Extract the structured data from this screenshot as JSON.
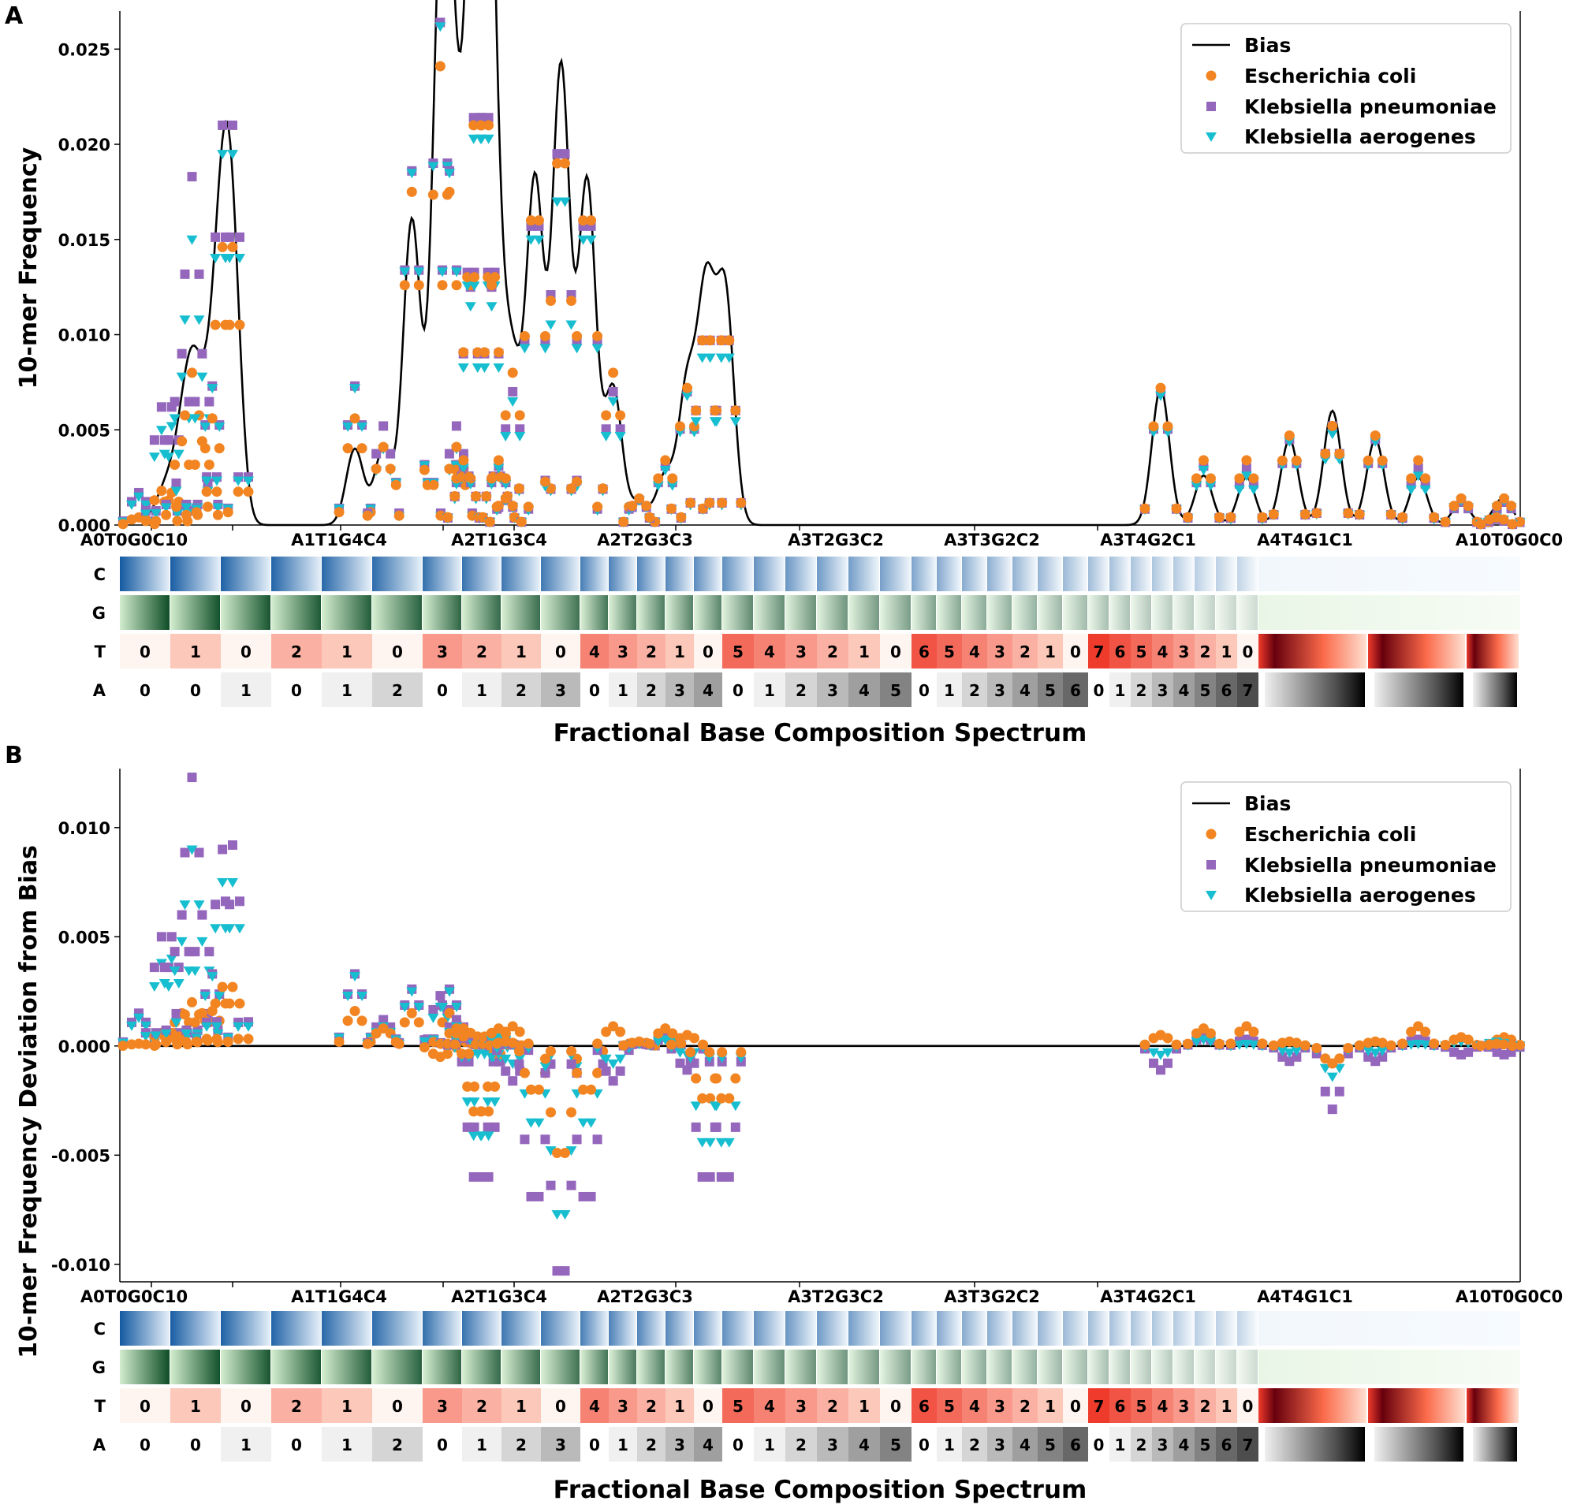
{
  "colors": {
    "bias": "#000000",
    "ecoli": "#f28522",
    "kpneu": "#9467bd",
    "kaero": "#17becf",
    "C_dark": "#08519c",
    "C_light": "#deebf7",
    "G_dark": "#00441b",
    "G_light": "#c7e9c0",
    "T_dark": "#67000d",
    "T_mid": "#ef3b2c",
    "T_light": "#fee0d2",
    "A_dark": "#000000",
    "A_light": "#f0f0f0"
  },
  "legend": {
    "bias": "Bias",
    "ecoli": "Escherichia coli",
    "kpneu": "Klebsiella pneumoniae",
    "kaero": "Klebsiella aerogenes"
  },
  "composition": {
    "x_title": "Fractional Base Composition Spectrum",
    "x_tick_labels": [
      "A0T0G0C10",
      "A1T1G4C4",
      "A2T1G3C4",
      "A2T2G3C3",
      "A3T2G3C2",
      "A3T3G2C2",
      "A3T4G2C1",
      "A4T4G1C1",
      "A10T0G0C0"
    ],
    "band_labels": [
      "C",
      "G",
      "T",
      "A"
    ],
    "T_numbers": [
      "0",
      "1",
      "0",
      "2",
      "1",
      "0",
      "3",
      "2",
      "1",
      "0",
      "4",
      "3",
      "2",
      "1",
      "0",
      "5",
      "4",
      "3",
      "2",
      "1",
      "0",
      "6",
      "5",
      "4",
      "3",
      "2",
      "1",
      "0",
      "7",
      "6",
      "5",
      "4",
      "3",
      "2",
      "1",
      "0"
    ],
    "A_numbers": [
      "0",
      "0",
      "1",
      "0",
      "1",
      "2",
      "0",
      "1",
      "2",
      "3",
      "0",
      "1",
      "2",
      "3",
      "4",
      "0",
      "1",
      "2",
      "3",
      "4",
      "5",
      "0",
      "1",
      "2",
      "3",
      "4",
      "5",
      "6",
      "0",
      "1",
      "2",
      "3",
      "4",
      "5",
      "6",
      "7"
    ]
  },
  "chart_data": [
    {
      "type": "line+scatter",
      "panel_label": "A",
      "ylabel": "10-mer Frequency",
      "xlabel": "Fractional Base Composition Spectrum",
      "ylim": [
        0,
        0.027
      ],
      "yticks": [
        "0.000",
        "0.005",
        "0.010",
        "0.015",
        "0.020",
        "0.025"
      ],
      "ytick_values": [
        0,
        0.005,
        0.01,
        0.015,
        0.02,
        0.025
      ],
      "legend_position": "top-right",
      "series": [
        {
          "name": "Bias",
          "style": "line"
        },
        {
          "name": "Escherichia coli",
          "style": "circle"
        },
        {
          "name": "Klebsiella pneumoniae",
          "style": "square"
        },
        {
          "name": "Klebsiella aerogenes",
          "style": "triangle-down"
        }
      ],
      "peaks": [
        {
          "bias": 0.0003,
          "ecoli": 0.0004,
          "kpneu": 0.0017,
          "kaero": 0.0015,
          "n": 3
        },
        {
          "bias": 0.0012,
          "ecoli": 0.0018,
          "kpneu": 0.0062,
          "kaero": 0.005,
          "n": 3
        },
        {
          "bias": 0.0012,
          "ecoli": 0.0017,
          "kpneu": 0.0062,
          "kaero": 0.0052,
          "n": 3
        },
        {
          "bias": 0.003,
          "ecoli": 0.0044,
          "kpneu": 0.009,
          "kaero": 0.0078,
          "n": 3
        },
        {
          "bias": 0.006,
          "ecoli": 0.008,
          "kpneu": 0.0183,
          "kaero": 0.015,
          "n": 3
        },
        {
          "bias": 0.003,
          "ecoli": 0.0044,
          "kpneu": 0.009,
          "kaero": 0.0078,
          "n": 3
        },
        {
          "bias": 0.004,
          "ecoli": 0.0056,
          "kpneu": 0.0073,
          "kaero": 0.0072,
          "n": 3
        },
        {
          "bias": 0.012,
          "ecoli": 0.0146,
          "kpneu": 0.021,
          "kaero": 0.0195,
          "n": 3
        },
        {
          "bias": 0.012,
          "ecoli": 0.0146,
          "kpneu": 0.021,
          "kaero": 0.0195,
          "n": 3
        },
        {
          "bias": 0.004,
          "ecoli": 0.0056,
          "kpneu": 0.0073,
          "kaero": 0.0072,
          "n": 3
        },
        {
          "bias": 0.004,
          "ecoli": 0.0041,
          "kpneu": 0.0052,
          "kaero": 0.004,
          "n": 3
        },
        {
          "bias": 0.016,
          "ecoli": 0.0175,
          "kpneu": 0.0186,
          "kaero": 0.0185,
          "n": 3
        },
        {
          "bias": 0.024,
          "ecoli": 0.0241,
          "kpneu": 0.0264,
          "kaero": 0.0262,
          "n": 3
        },
        {
          "bias": 0.016,
          "ecoli": 0.0175,
          "kpneu": 0.0186,
          "kaero": 0.0185,
          "n": 3
        },
        {
          "bias": 0.004,
          "ecoli": 0.0041,
          "kpneu": 0.0052,
          "kaero": 0.004,
          "n": 3
        },
        {
          "bias": 0.0026,
          "ecoli": 0.0034,
          "kpneu": 0.0031,
          "kaero": 0.003,
          "n": 3
        },
        {
          "bias": 0.012,
          "ecoli": 0.0126,
          "kpneu": 0.0125,
          "kaero": 0.0115,
          "n": 3
        },
        {
          "bias": 0.024,
          "ecoli": 0.021,
          "kpneu": 0.0214,
          "kaero": 0.0203,
          "n": 4
        },
        {
          "bias": 0.024,
          "ecoli": 0.021,
          "kpneu": 0.0214,
          "kaero": 0.0203,
          "n": 4
        },
        {
          "bias": 0.012,
          "ecoli": 0.0126,
          "kpneu": 0.0125,
          "kaero": 0.0115,
          "n": 3
        },
        {
          "bias": 0.0026,
          "ecoli": 0.0034,
          "kpneu": 0.0031,
          "kaero": 0.003,
          "n": 3
        },
        {
          "bias": 0.0012,
          "ecoli": 0.0014,
          "kpneu": 0.0013,
          "kaero": 0.0013,
          "n": 3
        },
        {
          "bias": 0.0072,
          "ecoli": 0.008,
          "kpneu": 0.007,
          "kaero": 0.0065,
          "n": 3
        },
        {
          "bias": 0.018,
          "ecoli": 0.016,
          "kpneu": 0.0157,
          "kaero": 0.015,
          "n": 4
        },
        {
          "bias": 0.024,
          "ecoli": 0.019,
          "kpneu": 0.0195,
          "kaero": 0.017,
          "n": 4
        },
        {
          "bias": 0.018,
          "ecoli": 0.016,
          "kpneu": 0.0157,
          "kaero": 0.015,
          "n": 4
        },
        {
          "bias": 0.0072,
          "ecoli": 0.008,
          "kpneu": 0.007,
          "kaero": 0.0065,
          "n": 3
        },
        {
          "bias": 0.0012,
          "ecoli": 0.0014,
          "kpneu": 0.0013,
          "kaero": 0.0013,
          "n": 3
        },
        {
          "bias": 0.0026,
          "ecoli": 0.0034,
          "kpneu": 0.0031,
          "kaero": 0.0029,
          "n": 3
        },
        {
          "bias": 0.0072,
          "ecoli": 0.0072,
          "kpneu": 0.007,
          "kaero": 0.0068,
          "n": 3
        },
        {
          "bias": 0.012,
          "ecoli": 0.0097,
          "kpneu": 0.0097,
          "kaero": 0.0088,
          "n": 4
        },
        {
          "bias": 0.012,
          "ecoli": 0.0097,
          "kpneu": 0.0097,
          "kaero": 0.0088,
          "n": 4
        },
        {
          "bias": 0.0072,
          "ecoli": 0.0072,
          "kpneu": 0.007,
          "kaero": 0.0068,
          "n": 3
        },
        {
          "bias": 0.0026,
          "ecoli": 0.0034,
          "kpneu": 0.0031,
          "kaero": 0.0029,
          "n": 3
        },
        {
          "bias": 0.0025,
          "ecoli": 0.0034,
          "kpneu": 0.003,
          "kaero": 0.0026,
          "n": 3
        },
        {
          "bias": 0.0045,
          "ecoli": 0.0047,
          "kpneu": 0.0045,
          "kaero": 0.0044,
          "n": 3
        },
        {
          "bias": 0.006,
          "ecoli": 0.0052,
          "kpneu": 0.0052,
          "kaero": 0.0048,
          "n": 3
        },
        {
          "bias": 0.0045,
          "ecoli": 0.0047,
          "kpneu": 0.0045,
          "kaero": 0.0044,
          "n": 3
        },
        {
          "bias": 0.0025,
          "ecoli": 0.0034,
          "kpneu": 0.003,
          "kaero": 0.0026,
          "n": 3
        },
        {
          "bias": 0.0012,
          "ecoli": 0.0014,
          "kpneu": 0.0012,
          "kaero": 0.0013,
          "n": 3
        },
        {
          "bias": 0.0012,
          "ecoli": 0.0014,
          "kpneu": 0.0012,
          "kaero": 0.0013,
          "n": 3
        },
        {
          "bias": 0.0003,
          "ecoli": 0.0004,
          "kpneu": 0.0003,
          "kaero": 0.0004,
          "n": 3
        }
      ]
    },
    {
      "type": "scatter",
      "panel_label": "B",
      "ylabel": "10-mer Frequency Deviation from Bias",
      "xlabel": "Fractional Base Composition Spectrum",
      "ylim": [
        -0.0108,
        0.0127
      ],
      "yticks": [
        "0.010",
        "0.005",
        "0.000",
        "-0.005",
        "-0.010"
      ],
      "ytick_values": [
        0.01,
        0.005,
        0,
        -0.005,
        -0.01
      ],
      "legend_position": "top-right",
      "series": [
        {
          "name": "Bias",
          "style": "horizontal line at 0"
        },
        {
          "name": "Escherichia coli",
          "style": "circle"
        },
        {
          "name": "Klebsiella pneumoniae",
          "style": "square"
        },
        {
          "name": "Klebsiella aerogenes",
          "style": "triangle-down"
        }
      ],
      "peaks": [
        {
          "ecoli": 0.0001,
          "kpneu": 0.0015,
          "kaero": 0.0013,
          "n": 3
        },
        {
          "ecoli": 0.0006,
          "kpneu": 0.005,
          "kaero": 0.0038,
          "n": 3
        },
        {
          "ecoli": 0.0006,
          "kpneu": 0.005,
          "kaero": 0.004,
          "n": 3
        },
        {
          "ecoli": 0.0015,
          "kpneu": 0.006,
          "kaero": 0.0048,
          "n": 3
        },
        {
          "ecoli": 0.002,
          "kpneu": 0.0123,
          "kaero": 0.009,
          "n": 3
        },
        {
          "ecoli": 0.0015,
          "kpneu": 0.006,
          "kaero": 0.0048,
          "n": 3
        },
        {
          "ecoli": 0.0016,
          "kpneu": 0.0033,
          "kaero": 0.0032,
          "n": 3
        },
        {
          "ecoli": 0.0027,
          "kpneu": 0.009,
          "kaero": 0.0075,
          "n": 3
        },
        {
          "ecoli": 0.0027,
          "kpneu": 0.0092,
          "kaero": 0.0075,
          "n": 3
        },
        {
          "ecoli": 0.0016,
          "kpneu": 0.0033,
          "kaero": 0.0032,
          "n": 3
        },
        {
          "ecoli": 0.0008,
          "kpneu": 0.0012,
          "kaero": 0.0009,
          "n": 3
        },
        {
          "ecoli": 0.0015,
          "kpneu": 0.0026,
          "kaero": 0.0025,
          "n": 3
        },
        {
          "ecoli": -0.0005,
          "kpneu": 0.0023,
          "kaero": 0.0018,
          "n": 3
        },
        {
          "ecoli": 0.0015,
          "kpneu": 0.0026,
          "kaero": 0.0025,
          "n": 3
        },
        {
          "ecoli": 0.0008,
          "kpneu": 0.0012,
          "kaero": 0.0009,
          "n": 3
        },
        {
          "ecoli": 0.0008,
          "kpneu": 0.0004,
          "kaero": 0.0004,
          "n": 3
        },
        {
          "ecoli": 0.0006,
          "kpneu": 0.0005,
          "kaero": -0.0005,
          "n": 3
        },
        {
          "ecoli": -0.003,
          "kpneu": -0.006,
          "kaero": -0.0041,
          "n": 4
        },
        {
          "ecoli": -0.003,
          "kpneu": -0.006,
          "kaero": -0.0041,
          "n": 4
        },
        {
          "ecoli": 0.0006,
          "kpneu": 0.0005,
          "kaero": -0.0005,
          "n": 3
        },
        {
          "ecoli": 0.0008,
          "kpneu": 0.0004,
          "kaero": 0.0004,
          "n": 3
        },
        {
          "ecoli": 0.0002,
          "kpneu": 0.0001,
          "kaero": 0.0001,
          "n": 3
        },
        {
          "ecoli": 0.0009,
          "kpneu": -0.0016,
          "kaero": -0.0008,
          "n": 3
        },
        {
          "ecoli": -0.002,
          "kpneu": -0.0069,
          "kaero": -0.0035,
          "n": 4
        },
        {
          "ecoli": -0.0049,
          "kpneu": -0.0103,
          "kaero": -0.0077,
          "n": 4
        },
        {
          "ecoli": -0.002,
          "kpneu": -0.0069,
          "kaero": -0.0035,
          "n": 4
        },
        {
          "ecoli": 0.0009,
          "kpneu": -0.0016,
          "kaero": -0.0008,
          "n": 3
        },
        {
          "ecoli": 0.0002,
          "kpneu": 0.0001,
          "kaero": 0.0001,
          "n": 3
        },
        {
          "ecoli": 0.0008,
          "kpneu": 0.0004,
          "kaero": 0.0003,
          "n": 3
        },
        {
          "ecoli": 0.0005,
          "kpneu": -0.0011,
          "kaero": -0.0004,
          "n": 3
        },
        {
          "ecoli": -0.0024,
          "kpneu": -0.006,
          "kaero": -0.0044,
          "n": 4
        },
        {
          "ecoli": -0.0024,
          "kpneu": -0.006,
          "kaero": -0.0044,
          "n": 4
        },
        {
          "ecoli": 0.0005,
          "kpneu": -0.0011,
          "kaero": -0.0004,
          "n": 3
        },
        {
          "ecoli": 0.0008,
          "kpneu": 0.0004,
          "kaero": 0.0003,
          "n": 3
        },
        {
          "ecoli": 0.0009,
          "kpneu": 0.0003,
          "kaero": 0.0001,
          "n": 3
        },
        {
          "ecoli": 0.0002,
          "kpneu": -0.0007,
          "kaero": -0.0003,
          "n": 3
        },
        {
          "ecoli": -0.0008,
          "kpneu": -0.0029,
          "kaero": -0.0014,
          "n": 3
        },
        {
          "ecoli": 0.0002,
          "kpneu": -0.0007,
          "kaero": -0.0003,
          "n": 3
        },
        {
          "ecoli": 0.0009,
          "kpneu": 0.0003,
          "kaero": 0.0001,
          "n": 3
        },
        {
          "ecoli": 0.0004,
          "kpneu": -0.0004,
          "kaero": 0.0002,
          "n": 3
        },
        {
          "ecoli": 0.0004,
          "kpneu": -0.0004,
          "kaero": 0.0002,
          "n": 3
        },
        {
          "ecoli": 0.0001,
          "kpneu": 0.0001,
          "kaero": 0.0002,
          "n": 3
        }
      ]
    }
  ]
}
